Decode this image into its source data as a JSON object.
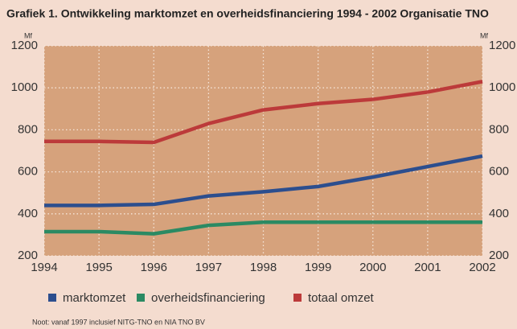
{
  "chart_data": {
    "type": "line",
    "title": "Grafiek 1. Ontwikkeling marktomzet en overheidsfinanciering 1994 - 2002 Organisatie TNO",
    "y_unit": "Mf",
    "y2_unit": "Mf",
    "note": "Noot: vanaf 1997 inclusief NITG-TNO en NIA TNO BV",
    "x": [
      1994,
      1995,
      1996,
      1997,
      1998,
      1999,
      2000,
      2001,
      2002
    ],
    "xlim": [
      1994,
      2002
    ],
    "xticks": [
      1994,
      1995,
      1996,
      1997,
      1998,
      1999,
      2000,
      2001,
      2002
    ],
    "ylim": [
      200,
      1200
    ],
    "yticks": [
      200,
      400,
      600,
      800,
      1000,
      1200
    ],
    "y2lim": [
      200,
      1200
    ],
    "y2ticks": [
      200,
      400,
      600,
      800,
      1000,
      1200
    ],
    "grid": true,
    "legend": "bottom",
    "series": [
      {
        "name": "marktomzet",
        "color": "#2c4e8e",
        "values": [
          440,
          440,
          445,
          485,
          505,
          530,
          575,
          625,
          675
        ]
      },
      {
        "name": "overheidsfinanciering",
        "color": "#2b8a63",
        "values": [
          315,
          315,
          305,
          345,
          360,
          360,
          360,
          360,
          360
        ]
      },
      {
        "name": "totaal omzet",
        "color": "#bc3a3a",
        "values": [
          745,
          745,
          740,
          830,
          895,
          925,
          945,
          980,
          1030
        ]
      }
    ]
  }
}
